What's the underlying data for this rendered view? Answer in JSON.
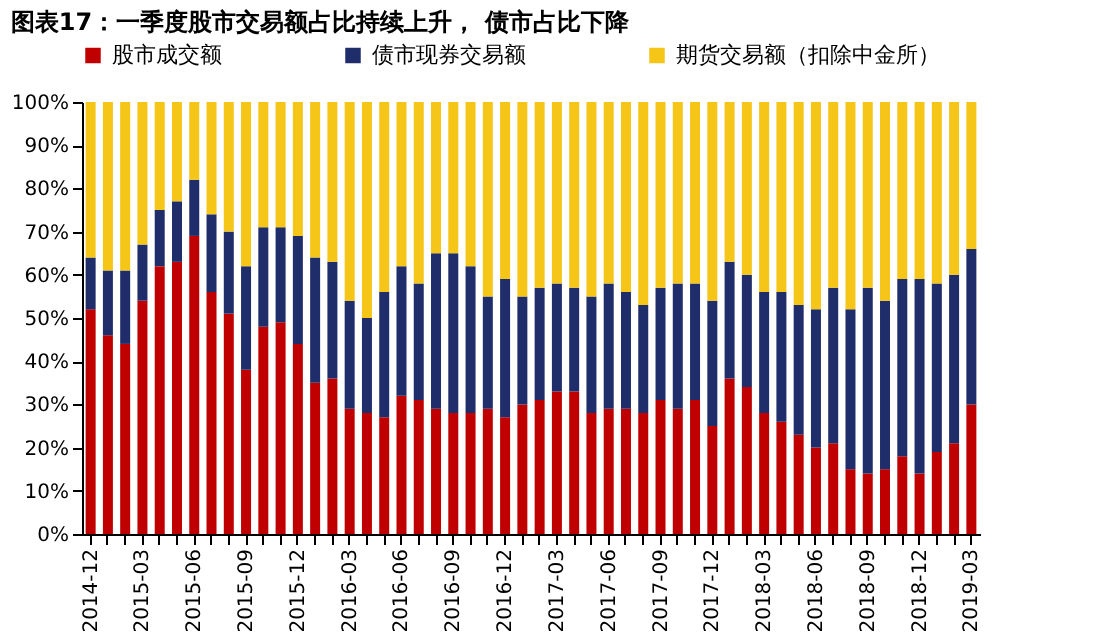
{
  "chart_data": {
    "type": "bar",
    "title": "图表17：一季度股市交易额占比持续上升， 债市占比下降",
    "stacked": true,
    "legend": "top",
    "grid": false,
    "categories": [
      "2014-12",
      null,
      null,
      "2015-03",
      null,
      null,
      "2015-06",
      null,
      null,
      "2015-09",
      null,
      null,
      "2015-12",
      null,
      null,
      "2016-03",
      null,
      null,
      "2016-06",
      null,
      null,
      "2016-09",
      null,
      null,
      "2016-12",
      null,
      null,
      "2017-03",
      null,
      null,
      "2017-06",
      null,
      null,
      "2017-09",
      null,
      null,
      "2017-12",
      null,
      null,
      "2018-03",
      null,
      null,
      "2018-06",
      null,
      null,
      "2018-09",
      null,
      null,
      "2018-12",
      null,
      null,
      "2019-03"
    ],
    "ylim": [
      0,
      100
    ],
    "yticks": [
      {
        "value": 0,
        "label": "0%"
      },
      {
        "value": 10,
        "label": "10%"
      },
      {
        "value": 20,
        "label": "20%"
      },
      {
        "value": 30,
        "label": "30%"
      },
      {
        "value": 40,
        "label": "40%"
      },
      {
        "value": 50,
        "label": "50%"
      },
      {
        "value": 60,
        "label": "60%"
      },
      {
        "value": 70,
        "label": "70%"
      },
      {
        "value": 80,
        "label": "80%"
      },
      {
        "value": 90,
        "label": "90%"
      },
      {
        "value": 100,
        "label": "100%"
      }
    ],
    "series": [
      {
        "name": "股市成交额",
        "color": "#c00000",
        "values": [
          52,
          46,
          44,
          54,
          62,
          63,
          69,
          56,
          51,
          38,
          48,
          49,
          44,
          35,
          36,
          29,
          28,
          27,
          32,
          31,
          29,
          28,
          28,
          29,
          27,
          30,
          31,
          33,
          33,
          28,
          29,
          29,
          28,
          31,
          29,
          31,
          25,
          36,
          34,
          28,
          26,
          23,
          20,
          21,
          15,
          14,
          15,
          18,
          14,
          19,
          21,
          30
        ]
      },
      {
        "name": "债市现券交易额",
        "color": "#1f2d6b",
        "values": [
          12,
          15,
          17,
          13,
          13,
          14,
          13,
          18,
          19,
          24,
          23,
          22,
          25,
          29,
          27,
          25,
          22,
          29,
          30,
          27,
          36,
          37,
          34,
          26,
          32,
          25,
          26,
          25,
          24,
          27,
          29,
          27,
          25,
          26,
          29,
          27,
          29,
          27,
          26,
          28,
          30,
          30,
          32,
          36,
          37,
          43,
          39,
          41,
          45,
          39,
          39,
          36
        ]
      },
      {
        "name": "期货交易额（扣除中金所）",
        "color": "#f5c518",
        "values": [
          36,
          39,
          39,
          33,
          25,
          23,
          18,
          26,
          30,
          38,
          29,
          29,
          31,
          36,
          37,
          46,
          50,
          44,
          38,
          42,
          35,
          35,
          38,
          45,
          41,
          45,
          43,
          42,
          43,
          45,
          42,
          44,
          47,
          43,
          42,
          42,
          46,
          37,
          40,
          44,
          44,
          47,
          48,
          43,
          48,
          43,
          46,
          41,
          41,
          42,
          40,
          34
        ]
      }
    ]
  }
}
